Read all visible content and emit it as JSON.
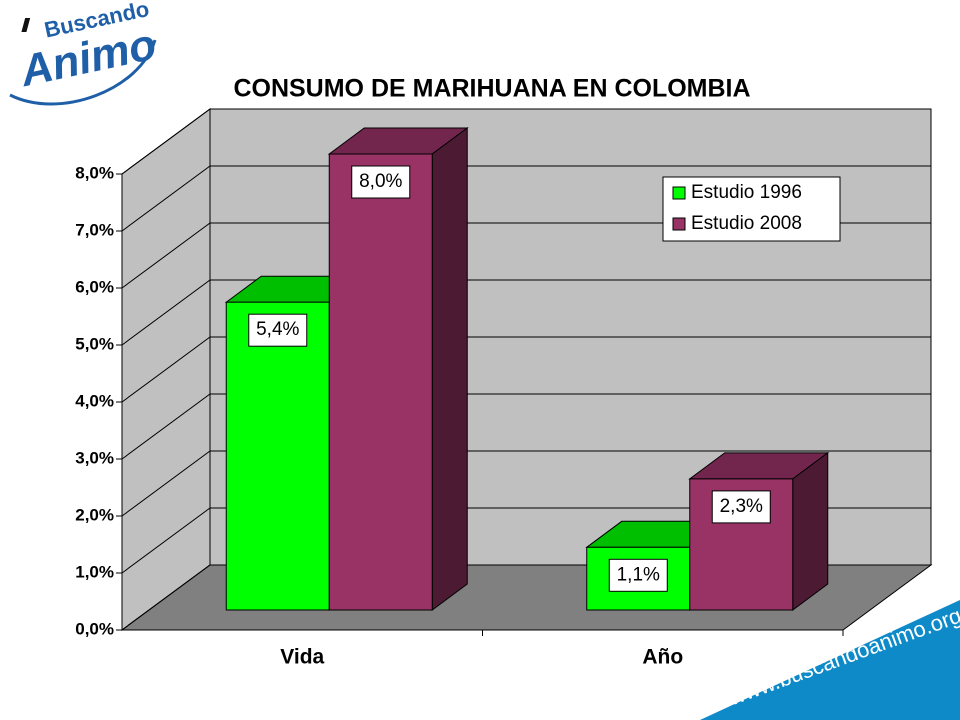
{
  "logo": {
    "top": "Buscando",
    "main": "Animo"
  },
  "footer": {
    "url": "www.buscandoanimo.org"
  },
  "chart_data": {
    "type": "bar3d",
    "title": "CONSUMO DE MARIHUANA EN COLOMBIA",
    "categories": [
      "Vida",
      "Año"
    ],
    "series": [
      {
        "name": "Estudio 1996",
        "color": "#00ff00",
        "values": [
          5.4,
          1.1
        ],
        "value_labels": [
          "5,4%",
          "1,1%"
        ]
      },
      {
        "name": "Estudio 2008",
        "color": "#993366",
        "values": [
          8.0,
          2.3
        ],
        "value_labels": [
          "8,0%",
          "2,3%"
        ]
      }
    ],
    "ylim": [
      0,
      8
    ],
    "yticks": [
      {
        "value": 0,
        "label": "0,0%"
      },
      {
        "value": 1,
        "label": "1,0%"
      },
      {
        "value": 2,
        "label": "2,0%"
      },
      {
        "value": 3,
        "label": "3,0%"
      },
      {
        "value": 4,
        "label": "4,0%"
      },
      {
        "value": 5,
        "label": "5,0%"
      },
      {
        "value": 6,
        "label": "6,0%"
      },
      {
        "value": 7,
        "label": "7,0%"
      },
      {
        "value": 8,
        "label": "8,0%"
      }
    ],
    "grid": true,
    "legend": "upper right"
  }
}
